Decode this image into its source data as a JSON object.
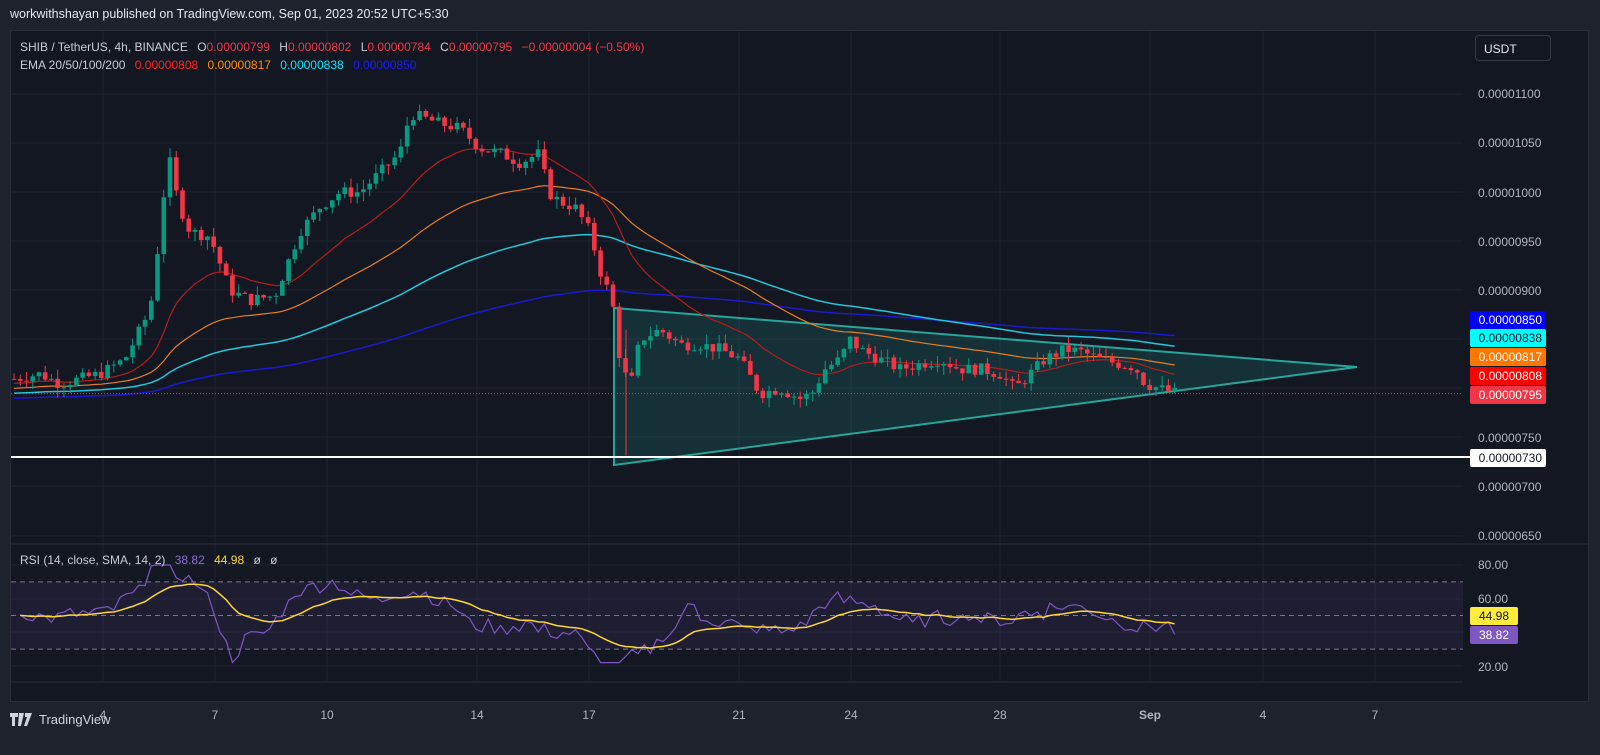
{
  "header": {
    "published": "workwithshayan published on TradingView.com, Sep 01, 2023 20:52 UTC+5:30"
  },
  "symbol_legend": {
    "title": "SHIB / TetherUS, 4h, BINANCE",
    "o_label": "O",
    "o": "0.00000799",
    "h_label": "H",
    "h": "0.00000802",
    "l_label": "L",
    "l": "0.00000784",
    "c_label": "C",
    "c": "0.00000795",
    "change": "−0.00000004 (−0.50%)"
  },
  "ema_legend": {
    "title": "EMA 20/50/100/200",
    "ema20": "0.00000808",
    "ema50": "0.00000817",
    "ema100": "0.00000838",
    "ema200": "0.00000850"
  },
  "rsi_legend": {
    "title": "RSI (14, close, SMA, 14, 2)",
    "rsi": "38.82",
    "sma": "44.98",
    "extra1": "ø",
    "extra2": "ø"
  },
  "currency_button": "USDT",
  "price_axis": {
    "ticks": [
      "0.00001100",
      "0.00001050",
      "0.00001000",
      "0.00000950",
      "0.00000900",
      "0.00000750",
      "0.00000700",
      "0.00000650"
    ],
    "badges": [
      {
        "label": "0.00000850",
        "bg": "#0000ff",
        "fg": "#ffffff"
      },
      {
        "label": "0.00000838",
        "bg": "#00ffff",
        "fg": "#131722"
      },
      {
        "label": "0.00000817",
        "bg": "#ff7700",
        "fg": "#ffffff"
      },
      {
        "label": "0.00000808",
        "bg": "#ff0000",
        "fg": "#ffffff"
      },
      {
        "label": "0.00000795",
        "bg": "#f23645",
        "fg": "#ffffff"
      },
      {
        "label": "0.00000730",
        "bg": "#ffffff",
        "fg": "#131722"
      }
    ]
  },
  "rsi_axis": {
    "ticks": [
      "80.00",
      "60.00",
      "20.00"
    ],
    "badges": [
      {
        "label": "44.98",
        "bg": "#ffeb3b",
        "fg": "#131722"
      },
      {
        "label": "38.82",
        "bg": "#7e57c2",
        "fg": "#ffffff"
      }
    ]
  },
  "time_axis": [
    "4",
    "7",
    "10",
    "14",
    "17",
    "21",
    "24",
    "28",
    "Sep",
    "4",
    "7"
  ],
  "footer": {
    "brand": "TradingView"
  },
  "colors": {
    "up": "#089981",
    "down": "#f23645",
    "ema20": "#b71c1c",
    "ema50": "#e67e22",
    "ema100": "#26c6da",
    "ema200": "#1a1acc",
    "triangle": "#26a69a",
    "rsi": "#7e57c2",
    "rsi_sma": "#fdd835"
  },
  "chart_data": [
    {
      "type": "candlestick",
      "title": "SHIB / TetherUS, 4h, BINANCE",
      "ylabel": "USDT",
      "ylim": [
        6.3e-06,
        1.13e-05
      ],
      "x_ticks": [
        "4",
        "7",
        "10",
        "14",
        "17",
        "21",
        "24",
        "28",
        "Sep",
        "4",
        "7"
      ],
      "y_ticks": [
        6.5e-06,
        7e-06,
        7.5e-06,
        9e-06,
        9.5e-06,
        1e-05,
        1.05e-05,
        1.1e-05
      ],
      "last": {
        "open": 7.99e-06,
        "high": 8.02e-06,
        "low": 7.84e-06,
        "close": 7.95e-06,
        "change": -4e-08,
        "change_pct": -0.5
      },
      "indicators": {
        "EMA20": 8.08e-06,
        "EMA50": 8.17e-06,
        "EMA100": 8.38e-06,
        "EMA200": 8.5e-06
      },
      "approx_price_path": [
        {
          "date": "Aug 2",
          "price": 8.1e-06
        },
        {
          "date": "Aug 4",
          "price": 8.2e-06
        },
        {
          "date": "Aug 5",
          "price": 9.5e-06
        },
        {
          "date": "Aug 6",
          "price": 1.05e-05
        },
        {
          "date": "Aug 7",
          "price": 9.6e-06
        },
        {
          "date": "Aug 8",
          "price": 8.9e-06
        },
        {
          "date": "Aug 10",
          "price": 9.9e-06
        },
        {
          "date": "Aug 12",
          "price": 1.08e-05
        },
        {
          "date": "Aug 13",
          "price": 1.065e-05
        },
        {
          "date": "Aug 15",
          "price": 1.04e-05
        },
        {
          "date": "Aug 16",
          "price": 9.9e-06
        },
        {
          "date": "Aug 17",
          "price": 8.8e-06
        },
        {
          "date": "Aug 18",
          "price": 7.3e-06
        },
        {
          "date": "Aug 19",
          "price": 8.6e-06
        },
        {
          "date": "Aug 21",
          "price": 7.9e-06
        },
        {
          "date": "Aug 23",
          "price": 8e-06
        },
        {
          "date": "Aug 24",
          "price": 8.5e-06
        },
        {
          "date": "Aug 26",
          "price": 8.1e-06
        },
        {
          "date": "Aug 28",
          "price": 8e-06
        },
        {
          "date": "Aug 30",
          "price": 8.4e-06
        },
        {
          "date": "Sep 1",
          "price": 7.95e-06
        }
      ],
      "annotations": [
        {
          "type": "horizontal_line",
          "price": 7.3e-06,
          "color": "#ffffff"
        },
        {
          "type": "triangle",
          "points": [
            [
              "Aug 17",
              8.82e-06
            ],
            [
              "Aug 17",
              7.22e-06
            ],
            [
              "Sep 6",
              8.18e-06
            ]
          ],
          "color": "#26a69a"
        }
      ]
    },
    {
      "type": "line",
      "title": "RSI (14, close, SMA, 14, 2)",
      "ylim": [
        15,
        85
      ],
      "y_ticks": [
        20,
        60,
        80
      ],
      "bands": [
        30,
        50,
        70
      ],
      "series": [
        {
          "name": "RSI",
          "last": 38.82
        },
        {
          "name": "RSI SMA",
          "last": 44.98
        }
      ]
    }
  ]
}
